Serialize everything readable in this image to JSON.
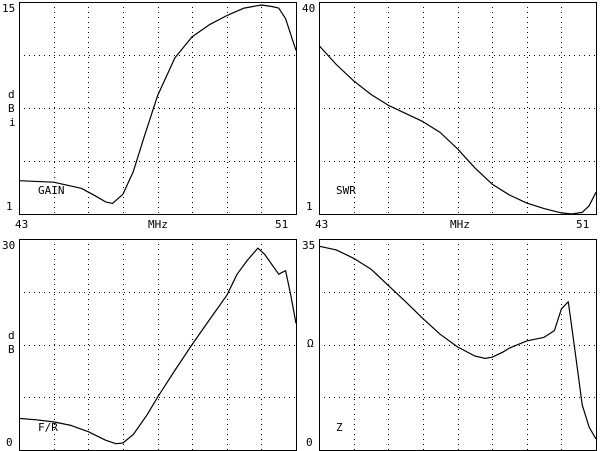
{
  "colors": {
    "background": "#ffffff",
    "ink": "#000000"
  },
  "chart_data": [
    {
      "type": "line",
      "label": "GAIN",
      "xlim": [
        43,
        51
      ],
      "ylim": [
        1,
        15
      ],
      "y_top_label": "15",
      "y_bottom_label": "1",
      "x_left_label": "43",
      "x_mid_label": "MHz",
      "x_right_label": "51",
      "y_unit": [
        "d",
        "B",
        "i"
      ],
      "grid": true,
      "x": [
        43,
        44,
        44.8,
        45.2,
        45.5,
        45.7,
        46,
        46.3,
        46.6,
        47,
        47.5,
        48,
        48.5,
        49,
        49.5,
        50,
        50.3,
        50.5,
        50.7,
        51
      ],
      "y": [
        3.2,
        3.1,
        2.7,
        2.2,
        1.8,
        1.7,
        2.3,
        3.8,
        6.0,
        8.8,
        11.3,
        12.7,
        13.5,
        14.1,
        14.6,
        14.8,
        14.7,
        14.6,
        13.9,
        11.8
      ]
    },
    {
      "type": "line",
      "label": "SWR",
      "xlim": [
        43,
        51
      ],
      "ylim": [
        1,
        40
      ],
      "y_top_label": "40",
      "y_bottom_label": "1",
      "x_left_label": "43",
      "x_mid_label": "MHz",
      "x_right_label": "51",
      "grid": true,
      "x": [
        43,
        43.5,
        44,
        44.5,
        45,
        45.5,
        46,
        46.5,
        47,
        47.5,
        48,
        48.5,
        49,
        49.5,
        50,
        50.3,
        50.6,
        50.8,
        51
      ],
      "y": [
        32,
        28.5,
        25.5,
        23,
        21,
        19.5,
        18,
        16,
        13,
        9.5,
        6.5,
        4.5,
        3,
        2,
        1.2,
        1,
        1.3,
        2.5,
        5
      ]
    },
    {
      "type": "line",
      "label": "F/R",
      "xlim": [
        43,
        51
      ],
      "ylim": [
        0,
        30
      ],
      "y_top_label": "30",
      "y_bottom_label": "0",
      "y_unit": [
        "d",
        "B"
      ],
      "grid": true,
      "x": [
        43,
        43.5,
        44,
        44.5,
        45,
        45.5,
        45.8,
        46,
        46.3,
        46.7,
        47,
        47.5,
        48,
        48.5,
        49,
        49.3,
        49.6,
        49.9,
        50.1,
        50.5,
        50.7,
        50.85,
        51
      ],
      "y": [
        4.5,
        4.3,
        4.0,
        3.5,
        2.6,
        1.4,
        0.9,
        1.0,
        2.2,
        5.0,
        7.5,
        11.3,
        15.0,
        18.5,
        22.0,
        25.0,
        27.0,
        28.7,
        27.8,
        25.0,
        25.5,
        22.0,
        18.0
      ]
    },
    {
      "type": "line",
      "label": "Z",
      "xlim": [
        43,
        51
      ],
      "ylim": [
        0,
        35
      ],
      "y_top_label": "35",
      "y_bottom_label": "0",
      "y_unit": [
        "Ω"
      ],
      "grid": true,
      "x": [
        43,
        43.5,
        44,
        44.5,
        45,
        45.5,
        46,
        46.5,
        47,
        47.5,
        47.8,
        48,
        48.3,
        48.5,
        49,
        49.5,
        49.8,
        50,
        50.2,
        50.4,
        50.6,
        50.8,
        51
      ],
      "y": [
        33.8,
        33.2,
        31.8,
        30.0,
        27.3,
        24.6,
        21.8,
        19.2,
        17.1,
        15.6,
        15.2,
        15.4,
        16.2,
        16.9,
        18.1,
        18.7,
        19.8,
        23.4,
        24.6,
        16.2,
        7.5,
        3.8,
        1.8
      ]
    }
  ]
}
